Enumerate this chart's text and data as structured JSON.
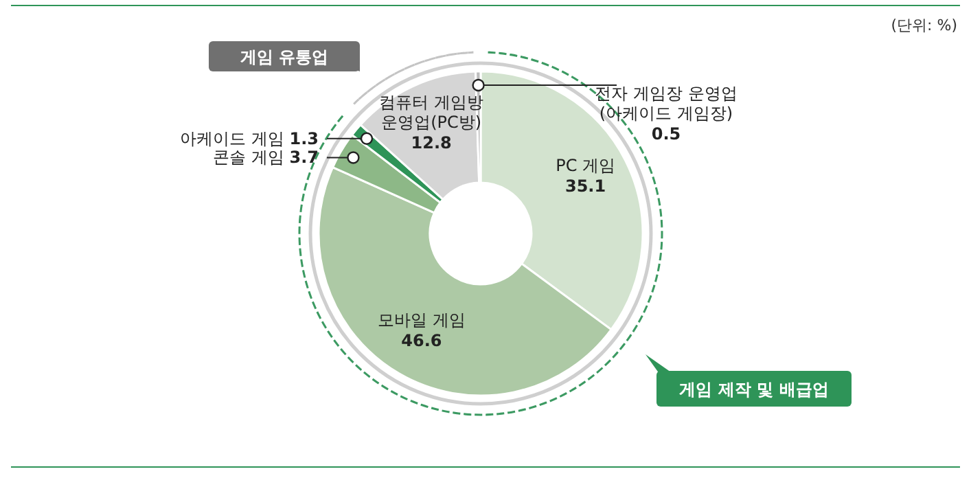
{
  "chart_data": {
    "type": "donut",
    "categories": [
      "PC 게임",
      "모바일 게임",
      "콘솔 게임",
      "아케이드 게임",
      "컴퓨터 게임방\n운영업(PC방)",
      "전자 게임장 운영업\n(아케이드 게임장)"
    ],
    "values": [
      35.1,
      46.6,
      3.7,
      1.3,
      12.8,
      0.5
    ],
    "colors": [
      "#d3e3cf",
      "#adc9a5",
      "#8db887",
      "#2e9458",
      "#d5d5d5",
      "#bdbdbd"
    ],
    "data_labels": true,
    "annotations": [
      "(단위:  %)",
      "게임 유통업",
      "게임 제작 및 배급업"
    ]
  }
}
